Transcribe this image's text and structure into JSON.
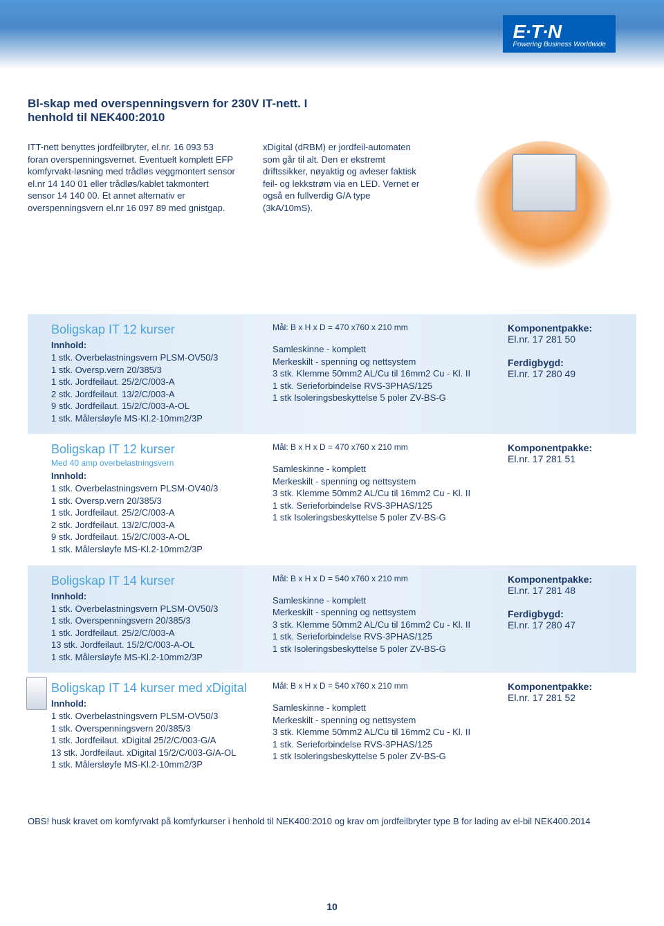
{
  "logo": {
    "brand": "E·T·N",
    "tagline": "Powering Business Worldwide"
  },
  "heading": "Bl-skap med overspenningsvern for 230V IT-nett. I henhold til NEK400:2010",
  "intro_left": "ITT-nett benyttes jordfeilbryter, el.nr. 16 093 53 foran overspenningsvernet. Eventuelt komplett EFP komfyrvakt-løsning med trådløs veggmontert sensor el.nr 14 140 01 eller trådløs/kablet takmontert sensor 14 140 00. Et annet alternativ er  overspenningsvern el.nr 16 097 89 med gnistgap.",
  "intro_mid": "xDigital (dRBM) er jordfeil-automaten som går til alt. Den er ekstremt driftssikker, nøyaktig og avleser faktisk feil- og lekkstrøm via en LED. Vernet er også en fullverdig G/A type (3kA/10mS).",
  "panels": [
    {
      "title": "Boligskap IT 12 kurser",
      "subtitle": "",
      "innhold_label": "Innhold:",
      "items": [
        "1 stk. Overbelastningsvern PLSM-OV50/3",
        "1 stk. Oversp.vern 20/385/3",
        "1 stk. Jordfeilaut. 25/2/C/003-A",
        "2 stk. Jordfeilaut. 13/2/C/003-A",
        "9 stk. Jordfeilaut. 15/2/C/003-A-OL",
        "1 stk. Målersløyfe MS-Kl.2-10mm2/3P"
      ],
      "mal": "Mål: B x H x D = 470 x760 x 210 mm",
      "mid_items": [
        "Samleskinne - komplett",
        "Merkeskilt - spenning og nettsystem",
        "3 stk. Klemme 50mm2 AL/Cu til 16mm2 Cu - Kl. II",
        "1 stk. Serieforbindelse RVS-3PHAS/125",
        "1 stk  Isoleringsbeskyttelse 5 poler ZV-BS-G"
      ],
      "r1_label": "Komponentpakke:",
      "r1_val": "El.nr. 17 281 50",
      "r2_label": "Ferdigbygd:",
      "r2_val": "El.nr. 17 280 49",
      "shaded": true
    },
    {
      "title": "Boligskap IT 12 kurser",
      "subtitle": "Med 40 amp overbelastningsvern",
      "innhold_label": "Innhold:",
      "items": [
        "1 stk. Overbelastningsvern PLSM-OV40/3",
        "1 stk. Oversp.vern 20/385/3",
        "1 stk. Jordfeilaut. 25/2/C/003-A",
        "2 stk. Jordfeilaut. 13/2/C/003-A",
        "9 stk. Jordfeilaut. 15/2/C/003-A-OL",
        "1 stk. Målersløyfe MS-Kl.2-10mm2/3P"
      ],
      "mal": "Mål: B x H x D = 470 x760 x 210 mm",
      "mid_items": [
        "Samleskinne - komplett",
        "Merkeskilt - spenning og nettsystem",
        "3 stk. Klemme 50mm2 AL/Cu til 16mm2 Cu - Kl. II",
        "1 stk. Serieforbindelse RVS-3PHAS/125",
        "1 stk  Isoleringsbeskyttelse 5 poler ZV-BS-G"
      ],
      "r1_label": "Komponentpakke:",
      "r1_val": "El.nr. 17 281 51",
      "r2_label": "",
      "r2_val": "",
      "shaded": false
    },
    {
      "title": "Boligskap IT 14 kurser",
      "subtitle": "",
      "innhold_label": "Innhold:",
      "items": [
        "1 stk. Overbelastningsvern PLSM-OV50/3",
        "1 stk. Overspenningsvern 20/385/3",
        "1 stk. Jordfeilaut. 25/2/C/003-A",
        "13 stk. Jordfeilaut. 15/2/C/003-A-OL",
        "1 stk. Målersløyfe MS-Kl.2-10mm2/3P"
      ],
      "mal": "Mål: B x H x D = 540 x760 x 210 mm",
      "mid_items": [
        "Samleskinne - komplett",
        "Merkeskilt - spenning og nettsystem",
        "3 stk. Klemme 50mm2 AL/Cu til 16mm2 Cu - Kl. II",
        "1 stk. Serieforbindelse RVS-3PHAS/125",
        "1 stk  Isoleringsbeskyttelse 5 poler ZV-BS-G"
      ],
      "r1_label": "Komponentpakke:",
      "r1_val": "El.nr. 17 281 48",
      "r2_label": "Ferdigbygd:",
      "r2_val": "El.nr. 17 280 47",
      "shaded": true
    },
    {
      "title": "Boligskap IT 14 kurser med xDigital",
      "subtitle": "",
      "innhold_label": "Innhold:",
      "items": [
        "1 stk. Overbelastningsvern PLSM-OV50/3",
        "1 stk. Overspenningsvern 20/385/3",
        "1 stk. Jordfeilaut. xDigital 25/2/C/003-G/A",
        "13 stk. Jordfeilaut. xDigital 15/2/C/003-G/A-OL",
        "1 stk. Målersløyfe MS-Kl.2-10mm2/3P"
      ],
      "mal": "Mål: B x H x D = 540 x760 x 210 mm",
      "mid_items": [
        "Samleskinne - komplett",
        "Merkeskilt - spenning og nettsystem",
        "3 stk. Klemme 50mm2 AL/Cu til 16mm2 Cu - Kl. II",
        "1 stk. Serieforbindelse RVS-3PHAS/125",
        "1 stk  Isoleringsbeskyttelse 5 poler ZV-BS-G"
      ],
      "r1_label": "Komponentpakke:",
      "r1_val": "El.nr. 17 281 52",
      "r2_label": "",
      "r2_val": "",
      "shaded": false,
      "thumb": true
    }
  ],
  "footer_note": "OBS! husk kravet om komfyrvakt på komfyrkurser i henhold til NEK400:2010 og krav om jordfeilbryter type B for lading av el-bil  NEK400.2014",
  "page_number": "10"
}
